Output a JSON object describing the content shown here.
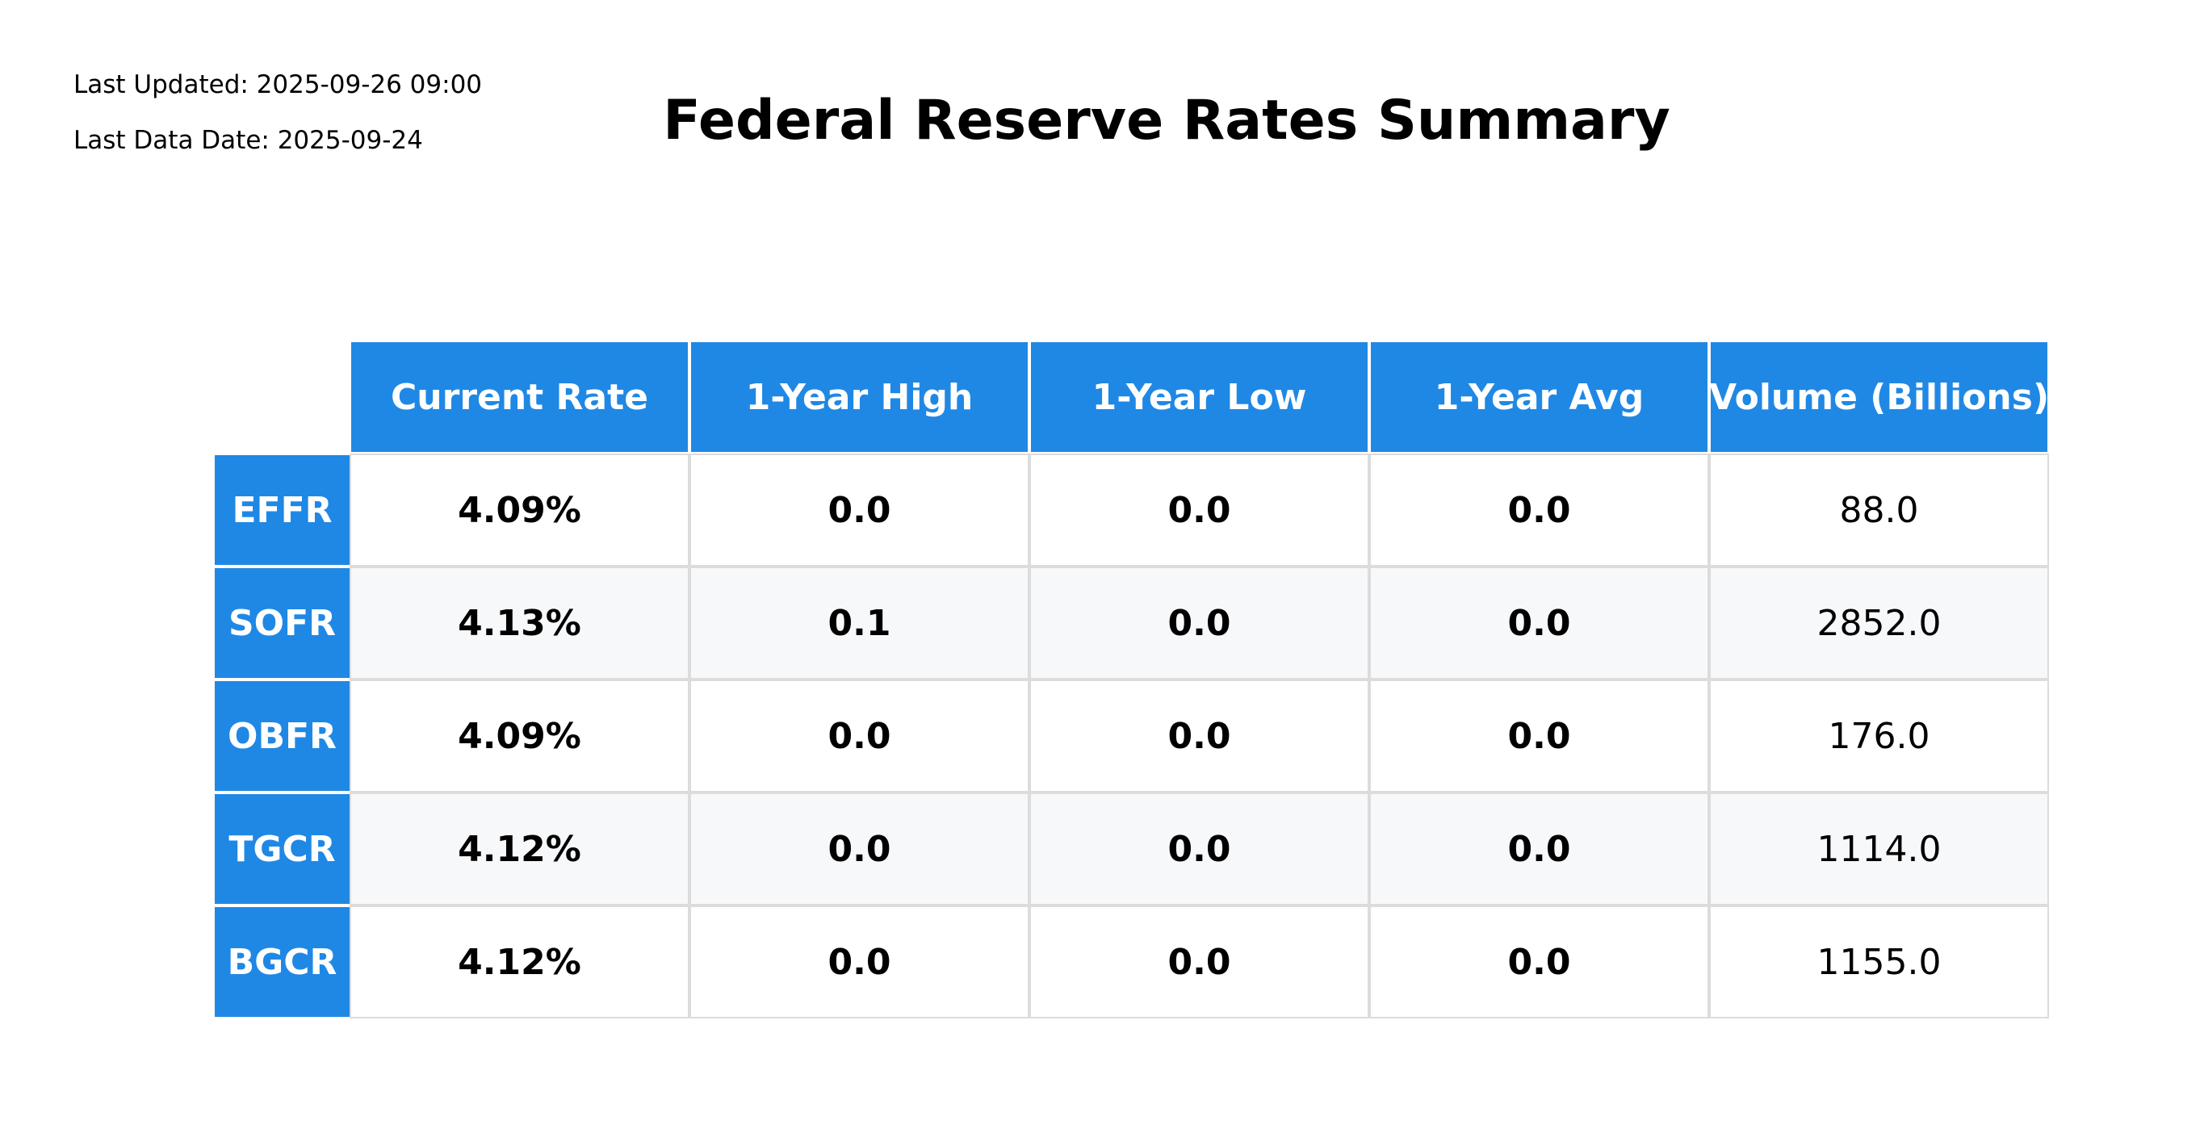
{
  "meta": {
    "last_updated": "Last Updated: 2025-09-26 09:00",
    "last_data_date": "Last Data Date: 2025-09-24"
  },
  "title": "Federal Reserve Rates Summary",
  "colors": {
    "header_bg": "#1f88e5",
    "header_text": "#ffffff",
    "row_alt_bg": "#f7f8fa",
    "grid": "#dcdcdc"
  },
  "chart_data": {
    "type": "table",
    "title": "Federal Reserve Rates Summary",
    "columns": [
      "Current Rate",
      "1-Year High",
      "1-Year Low",
      "1-Year Avg",
      "Volume (Billions)"
    ],
    "rows": [
      {
        "label": "EFFR",
        "values": [
          "4.09%",
          "0.0",
          "0.0",
          "0.0",
          "88.0"
        ]
      },
      {
        "label": "SOFR",
        "values": [
          "4.13%",
          "0.1",
          "0.0",
          "0.0",
          "2852.0"
        ]
      },
      {
        "label": "OBFR",
        "values": [
          "4.09%",
          "0.0",
          "0.0",
          "0.0",
          "176.0"
        ]
      },
      {
        "label": "TGCR",
        "values": [
          "4.12%",
          "0.0",
          "0.0",
          "0.0",
          "1114.0"
        ]
      },
      {
        "label": "BGCR",
        "values": [
          "4.12%",
          "0.0",
          "0.0",
          "0.0",
          "1155.0"
        ]
      }
    ]
  }
}
